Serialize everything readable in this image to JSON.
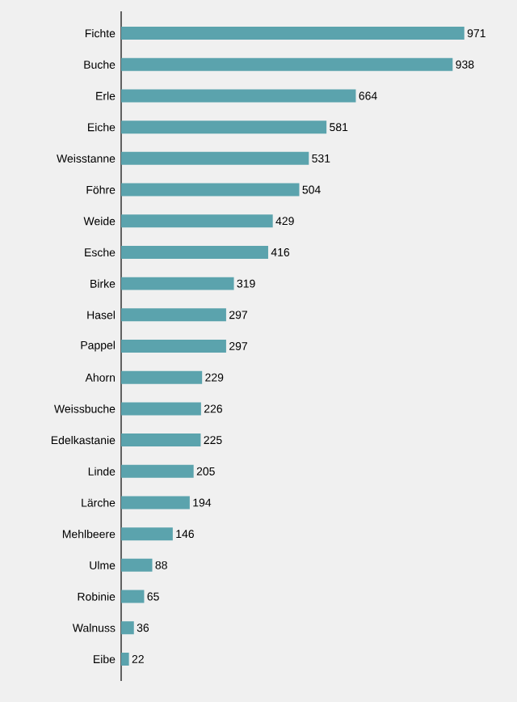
{
  "chart_data": {
    "type": "bar",
    "orientation": "horizontal",
    "categories": [
      "Fichte",
      "Buche",
      "Erle",
      "Eiche",
      "Weisstanne",
      "Föhre",
      "Weide",
      "Esche",
      "Birke",
      "Hasel",
      "Pappel",
      "Ahorn",
      "Weissbuche",
      "Edelkastanie",
      "Linde",
      "Lärche",
      "Mehlbeere",
      "Ulme",
      "Robinie",
      "Walnuss",
      "Eibe"
    ],
    "values": [
      971,
      938,
      664,
      581,
      531,
      504,
      429,
      416,
      319,
      297,
      297,
      229,
      226,
      225,
      205,
      194,
      146,
      88,
      65,
      36,
      22
    ],
    "color": "#5ba3ad",
    "data_labels": true,
    "tick_labels": "y"
  }
}
